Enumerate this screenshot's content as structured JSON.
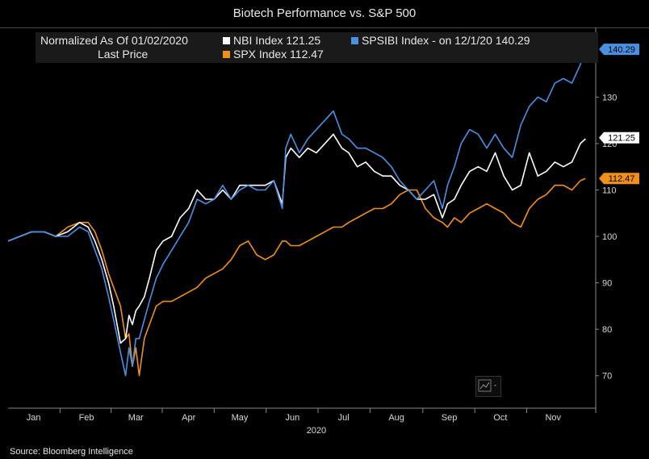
{
  "title": "Biotech Performance vs. S&P 500",
  "source": "Source: Bloomberg Intelligence",
  "legend": {
    "heading1": "Normalized As Of 01/02/2020",
    "heading2": "Last Price",
    "items": [
      {
        "label": "NBI Index 121.25",
        "color": "#ffffff"
      },
      {
        "label": "SPSIBI Index -  on 12/1/20 140.29",
        "color": "#4a90e2"
      },
      {
        "label": "SPX Index 112.47",
        "color": "#f0901c"
      }
    ]
  },
  "chart_data": {
    "type": "line",
    "title": "Biotech Performance vs. S&P 500",
    "xlabel": "2020",
    "ylabel": "",
    "ylim": [
      63,
      145
    ],
    "yticks": [
      70,
      80,
      90,
      100,
      110,
      120,
      130
    ],
    "x_range_days": [
      0,
      345
    ],
    "months": [
      {
        "label": "Jan",
        "day": 15
      },
      {
        "label": "Feb",
        "day": 46
      },
      {
        "label": "Mar",
        "day": 75
      },
      {
        "label": "Apr",
        "day": 106
      },
      {
        "label": "May",
        "day": 136
      },
      {
        "label": "Jun",
        "day": 167
      },
      {
        "label": "Jul",
        "day": 197
      },
      {
        "label": "Aug",
        "day": 228
      },
      {
        "label": "Sep",
        "day": 259
      },
      {
        "label": "Oct",
        "day": 289
      },
      {
        "label": "Nov",
        "day": 320
      }
    ],
    "x_days": [
      0,
      7,
      14,
      21,
      28,
      35,
      42,
      47,
      51,
      55,
      59,
      62,
      66,
      69,
      71,
      73,
      75,
      77,
      80,
      83,
      87,
      91,
      96,
      101,
      106,
      111,
      116,
      121,
      126,
      131,
      136,
      141,
      146,
      151,
      156,
      161,
      163,
      166,
      171,
      176,
      181,
      186,
      191,
      196,
      200,
      205,
      210,
      215,
      220,
      225,
      230,
      235,
      240,
      245,
      250,
      255,
      258,
      262,
      266,
      271,
      276,
      281,
      286,
      291,
      296,
      301,
      306,
      311,
      316,
      321,
      326,
      331,
      336,
      339
    ],
    "series": [
      {
        "name": "NBI Index",
        "color": "#ffffff",
        "last_price": 121.25,
        "values": [
          99,
          100,
          101,
          101,
          100,
          101,
          103,
          102,
          99,
          95,
          90,
          85,
          77,
          78,
          83,
          81,
          84,
          85,
          87,
          91,
          97,
          99,
          100,
          104,
          106,
          110,
          108,
          108,
          110,
          108,
          111,
          111,
          111,
          111,
          112,
          107,
          117,
          119,
          117,
          119,
          118,
          120,
          122,
          119,
          118,
          115,
          116,
          114,
          113,
          113,
          111,
          110,
          108,
          108,
          109,
          104,
          107,
          108,
          111,
          114,
          115,
          114,
          118,
          113,
          110,
          111,
          118,
          113,
          114,
          116,
          115,
          116,
          120,
          121
        ]
      },
      {
        "name": "SPSIBI Index",
        "color": "#4a90e2",
        "last_price": 140.29,
        "values": [
          99,
          100,
          101,
          101,
          100,
          100,
          102,
          101,
          97,
          93,
          87,
          82,
          75,
          70,
          76,
          72,
          78,
          78,
          82,
          86,
          91,
          94,
          97,
          100,
          103,
          108,
          107,
          108,
          111,
          108,
          110,
          111,
          110,
          110,
          112,
          106,
          119,
          122,
          118,
          121,
          123,
          125,
          127,
          122,
          121,
          119,
          119,
          118,
          117,
          115,
          112,
          110,
          108,
          110,
          112,
          106,
          111,
          115,
          120,
          123,
          122,
          119,
          122,
          119,
          117,
          124,
          128,
          130,
          129,
          133,
          134,
          133,
          137,
          140.29
        ]
      },
      {
        "name": "SPX Index",
        "color": "#f0901c",
        "last_price": 112.47,
        "values": [
          99,
          100,
          101,
          101,
          100,
          102,
          103,
          103,
          101,
          97,
          92,
          89,
          85,
          78,
          79,
          72,
          76,
          70,
          78,
          81,
          85,
          86,
          86,
          87,
          88,
          89,
          91,
          92,
          93,
          95,
          98,
          99,
          96,
          95,
          96,
          99,
          99,
          98,
          98,
          99,
          100,
          101,
          102,
          102,
          103,
          104,
          105,
          106,
          106,
          107,
          109,
          110,
          110,
          106,
          104,
          103,
          102,
          104,
          103,
          105,
          106,
          107,
          106,
          105,
          103,
          102,
          106,
          108,
          109,
          111,
          111,
          110,
          112,
          112.47
        ]
      }
    ]
  },
  "toolbar": {
    "chart_type_icon": "line-chart-icon",
    "dropdown_icon": "chevron-down-icon"
  }
}
